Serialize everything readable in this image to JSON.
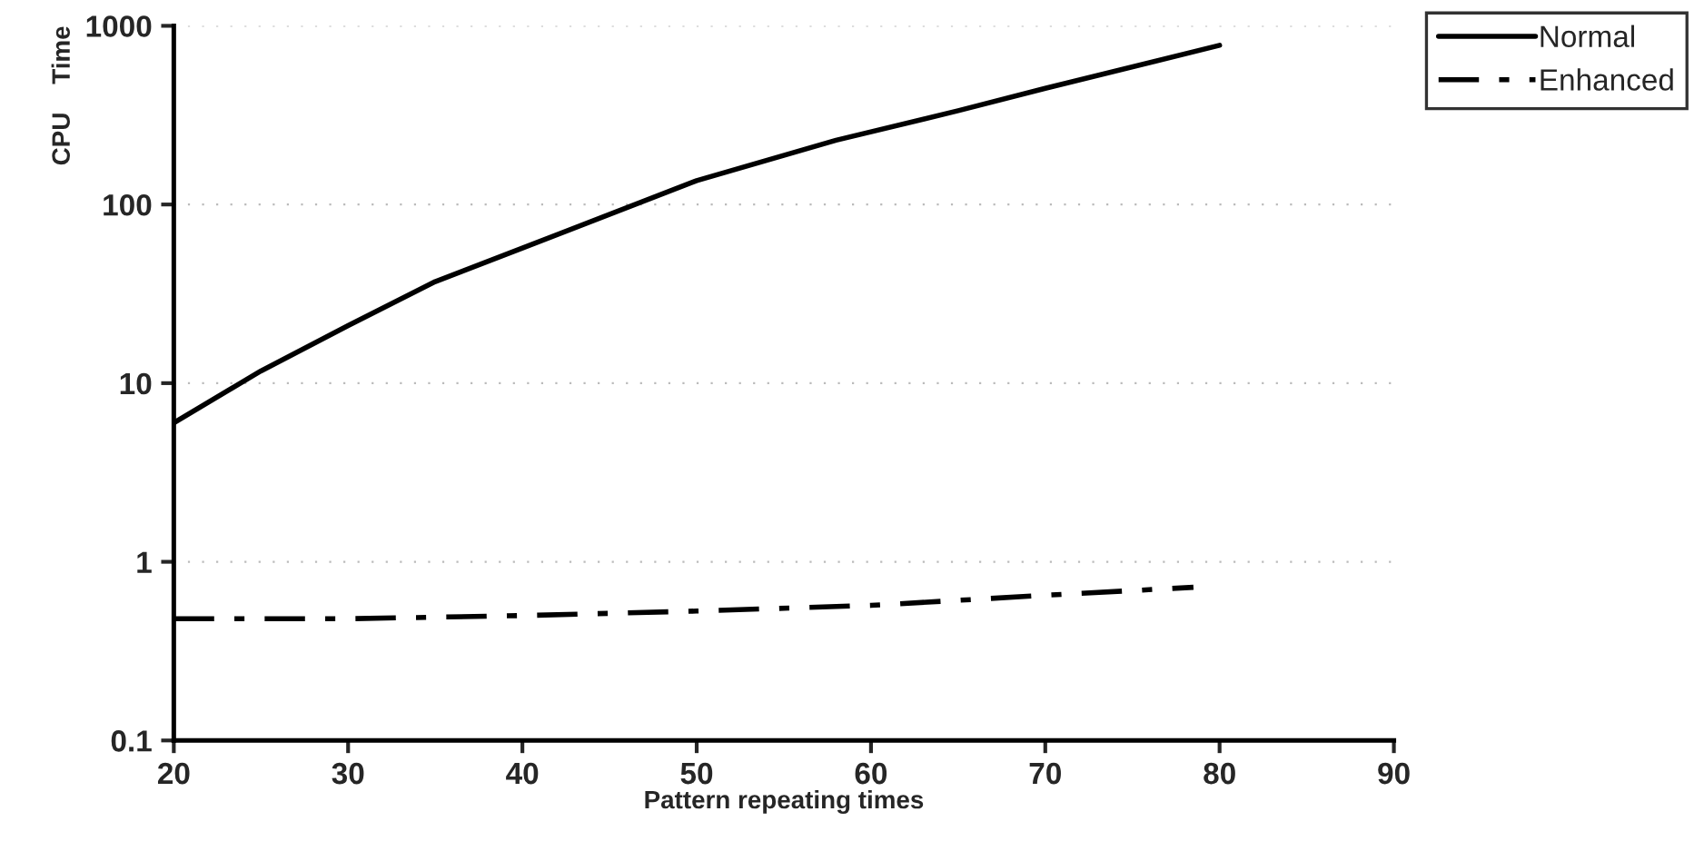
{
  "chart_data": {
    "type": "line",
    "xlabel": "Pattern repeating times",
    "ylabel": "CPU    Time",
    "log": "y",
    "xlim": [
      20,
      90
    ],
    "xticks": [
      20,
      30,
      40,
      50,
      60,
      70,
      80,
      90
    ],
    "ylim": [
      0.1,
      1000
    ],
    "yticks": [
      0.1,
      1,
      10,
      100,
      1000
    ],
    "grid": "y",
    "legend": "top right",
    "series": [
      {
        "name": "Normal",
        "color": "#000000",
        "line_style": "solid",
        "x": [
          20,
          25,
          30,
          35,
          40,
          50,
          58,
          65,
          70,
          80
        ],
        "values": [
          6,
          11.7,
          21,
          37,
          57,
          136,
          229,
          335,
          447,
          778
        ]
      },
      {
        "name": "Enhanced",
        "color": "#000000",
        "line_style": "dashdot",
        "x": [
          20,
          30,
          40,
          50,
          60,
          70,
          78.5
        ],
        "values": [
          0.48,
          0.48,
          0.5,
          0.53,
          0.57,
          0.65,
          0.72
        ]
      }
    ]
  }
}
